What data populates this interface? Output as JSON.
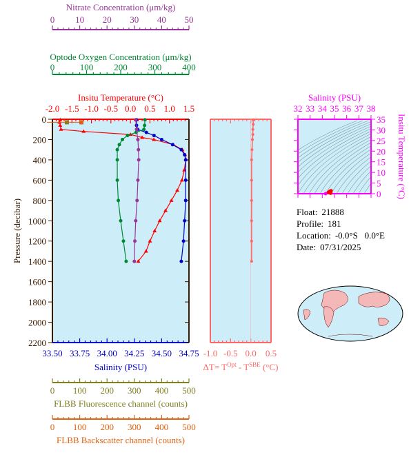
{
  "chart_data": [
    {
      "type": "line",
      "id": "profile",
      "ylabel": "Pressure (decibar)",
      "ylim": [
        2200,
        0
      ],
      "yticks": [
        0,
        200,
        400,
        600,
        800,
        1000,
        1200,
        1400,
        1600,
        1800,
        2000,
        2200
      ],
      "axes": {
        "nitrate": {
          "title": "Nitrate Concentration (μm/kg)",
          "range": [
            0,
            50
          ],
          "ticks": [
            0,
            10,
            20,
            30,
            40,
            50
          ],
          "color": "#993399"
        },
        "oxygen": {
          "title": "Optode Oxygen Concentration (μm/kg)",
          "range": [
            0,
            400
          ],
          "ticks": [
            0,
            100,
            200,
            300,
            400
          ],
          "color": "#008833"
        },
        "temperature": {
          "title": "Insitu Temperature (°C)",
          "range": [
            -2.0,
            1.5
          ],
          "ticks": [
            "-2.0",
            "-1.5",
            "-1.0",
            "-0.5",
            "0.0",
            "0.5",
            "1.0",
            "1.5"
          ],
          "color": "#ff0000"
        },
        "salinity": {
          "title": "Salinity (PSU)",
          "range": [
            33.5,
            34.75
          ],
          "ticks": [
            "33.50",
            "33.75",
            "34.00",
            "34.25",
            "34.50",
            "34.75"
          ],
          "color": "#0000cc"
        },
        "fluorescence": {
          "title": "FLBB Fluorescence channel (counts)",
          "range": [
            0,
            500
          ],
          "ticks": [
            0,
            100,
            200,
            300,
            400,
            500
          ],
          "color": "#808020"
        },
        "backscatter": {
          "title": "FLBB Backscatter channel (counts)",
          "range": [
            0,
            500
          ],
          "ticks": [
            0,
            100,
            200,
            300,
            400,
            500
          ],
          "color": "#e06010"
        }
      },
      "series": [
        {
          "name": "temperature",
          "axis": "temperature",
          "pressure": [
            5,
            30,
            60,
            100,
            120,
            150,
            180,
            200,
            250,
            300,
            350,
            400,
            500,
            600,
            700,
            800,
            900,
            1000,
            1100,
            1200,
            1300,
            1400
          ],
          "values": [
            -1.8,
            -1.82,
            -1.8,
            -1.78,
            -1.2,
            0.0,
            0.3,
            0.6,
            1.1,
            1.33,
            1.4,
            1.42,
            1.38,
            1.32,
            1.2,
            1.05,
            0.9,
            0.75,
            0.62,
            0.5,
            0.4,
            0.2
          ]
        },
        {
          "name": "salinity",
          "axis": "salinity",
          "pressure": [
            5,
            60,
            100,
            130,
            160,
            200,
            250,
            300,
            350,
            400,
            600,
            800,
            1000,
            1200,
            1400
          ],
          "values": [
            34.27,
            34.27,
            34.28,
            34.36,
            34.43,
            34.5,
            34.6,
            34.68,
            34.71,
            34.72,
            34.72,
            34.72,
            34.71,
            34.7,
            34.68
          ]
        },
        {
          "name": "oxygen",
          "axis": "oxygen",
          "pressure": [
            5,
            60,
            100,
            130,
            160,
            200,
            250,
            300,
            400,
            600,
            800,
            1000,
            1200,
            1400
          ],
          "values": [
            271,
            270,
            268,
            245,
            220,
            205,
            196,
            190,
            190,
            190,
            193,
            200,
            208,
            216
          ]
        },
        {
          "name": "nitrate",
          "axis": "nitrate",
          "pressure": [
            5,
            100,
            200,
            300,
            400,
            600,
            800,
            1000,
            1200,
            1400
          ],
          "values": [
            30.5,
            30.8,
            31.3,
            31.5,
            31.6,
            31.3,
            31.0,
            30.5,
            30.2,
            30.0
          ]
        },
        {
          "name": "fluorescence",
          "axis": "fluorescence",
          "pressure": [
            30
          ],
          "values": [
            53
          ]
        },
        {
          "name": "backscatter",
          "axis": "backscatter",
          "pressure": [
            30
          ],
          "values": [
            106
          ]
        }
      ]
    },
    {
      "type": "line",
      "id": "delta-t",
      "xlabel_parts": [
        "ΔT= T",
        "Opt",
        " - T",
        "SBE",
        " (°C)"
      ],
      "xlim": [
        -1.0,
        0.5
      ],
      "xticks": [
        "-1.0",
        "-0.5",
        "0.0",
        "0.5"
      ],
      "color": "#ff6666",
      "pressure": [
        5,
        50,
        100,
        150,
        200,
        300,
        400,
        600,
        800,
        1000,
        1200,
        1400
      ],
      "values": [
        0.06,
        0.06,
        0.05,
        0.05,
        0.04,
        0.03,
        0.02,
        0.02,
        0.02,
        0.02,
        0.02,
        0.02
      ]
    },
    {
      "type": "scatter",
      "id": "ts-diagram",
      "xlabel": "Salinity (PSU)",
      "ylabel": "Insitu Temperature (°C)",
      "xlim": [
        32,
        38
      ],
      "ylim": [
        0,
        35
      ],
      "xticks": [
        32,
        33,
        34,
        35,
        36,
        37,
        38
      ],
      "yticks": [
        0,
        5,
        10,
        15,
        20,
        25,
        30,
        35
      ],
      "color": "#ff00ff",
      "points": [
        [
          34.27,
          -1.8
        ],
        [
          34.5,
          0.6
        ],
        [
          34.6,
          1.1
        ],
        [
          34.72,
          1.42
        ],
        [
          34.7,
          0.75
        ],
        [
          34.68,
          0.2
        ]
      ]
    }
  ],
  "info": {
    "float_label": "Float:",
    "float": "21888",
    "profile_label": "Profile:",
    "profile": "181",
    "location_label": "Location:",
    "location": "-0.0°S   0.0°E",
    "date_label": "Date:",
    "date": "07/31/2025"
  }
}
